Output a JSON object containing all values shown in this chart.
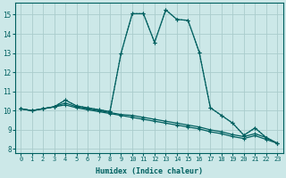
{
  "xlabel": "Humidex (Indice chaleur)",
  "background_color": "#cce8e8",
  "grid_color": "#aacccc",
  "line_color": "#006060",
  "xlim": [
    -0.5,
    23.5
  ],
  "ylim": [
    7.8,
    15.6
  ],
  "xticks": [
    0,
    1,
    2,
    3,
    4,
    5,
    6,
    7,
    8,
    9,
    10,
    11,
    12,
    13,
    14,
    15,
    16,
    17,
    18,
    19,
    20,
    21,
    22,
    23
  ],
  "yticks": [
    8,
    9,
    10,
    11,
    12,
    13,
    14,
    15
  ],
  "series": [
    {
      "x": [
        0,
        1,
        2,
        3,
        4,
        5,
        6,
        7,
        8,
        9,
        10,
        11,
        12,
        13,
        14,
        15,
        16,
        17,
        18,
        19,
        20,
        21,
        22,
        23
      ],
      "y": [
        10.1,
        10.0,
        10.1,
        10.2,
        10.55,
        10.25,
        10.15,
        10.05,
        9.95,
        13.0,
        15.05,
        15.05,
        13.55,
        15.25,
        14.75,
        14.7,
        13.05,
        10.15,
        9.75,
        9.35,
        8.72,
        9.1,
        8.6,
        8.3
      ],
      "linestyle": "dotted",
      "marker": "+"
    },
    {
      "x": [
        0,
        1,
        2,
        3,
        4,
        5,
        6,
        7,
        8,
        9,
        10,
        11,
        12,
        13,
        14,
        15,
        16,
        17,
        18,
        19,
        20,
        21,
        22,
        23
      ],
      "y": [
        10.1,
        10.0,
        10.1,
        10.2,
        10.55,
        10.25,
        10.15,
        10.05,
        9.95,
        13.0,
        15.05,
        15.05,
        13.55,
        15.25,
        14.75,
        14.7,
        13.05,
        10.15,
        9.75,
        9.35,
        8.72,
        9.1,
        8.6,
        8.3
      ],
      "linestyle": "solid",
      "marker": "+"
    },
    {
      "x": [
        0,
        1,
        2,
        3,
        4,
        5,
        6,
        7,
        8,
        9,
        10,
        11,
        12,
        13,
        14,
        15,
        16,
        17,
        18,
        19,
        20,
        21,
        22,
        23
      ],
      "y": [
        10.1,
        10.0,
        10.1,
        10.2,
        10.3,
        10.15,
        10.05,
        9.95,
        9.85,
        9.75,
        9.65,
        9.55,
        9.45,
        9.35,
        9.25,
        9.15,
        9.05,
        8.9,
        8.8,
        8.65,
        8.55,
        8.7,
        8.5,
        8.3
      ],
      "linestyle": "solid",
      "marker": "+"
    },
    {
      "x": [
        0,
        1,
        2,
        3,
        4,
        5,
        6,
        7,
        8,
        9,
        10,
        11,
        12,
        13,
        14,
        15,
        16,
        17,
        18,
        19,
        20,
        21,
        22,
        23
      ],
      "y": [
        10.1,
        10.0,
        10.1,
        10.2,
        10.4,
        10.2,
        10.1,
        10.0,
        9.9,
        9.8,
        9.75,
        9.65,
        9.55,
        9.45,
        9.35,
        9.25,
        9.15,
        9.0,
        8.9,
        8.75,
        8.65,
        8.8,
        8.6,
        8.3
      ],
      "linestyle": "solid",
      "marker": "+"
    }
  ]
}
